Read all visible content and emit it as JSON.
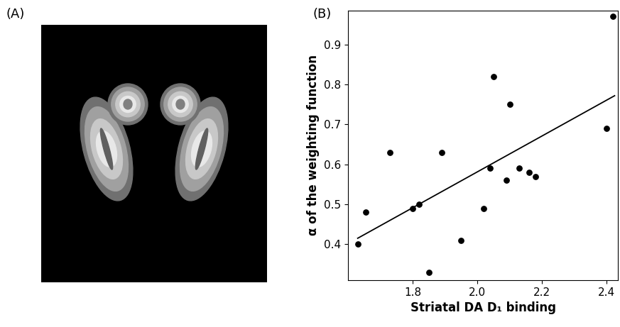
{
  "panel_labels": [
    "(A)",
    "(B)"
  ],
  "chart_data": {
    "type": "scatter",
    "x_label": "Striatal DA D₁ binding",
    "y_label": "α of the weighting function",
    "xlim": [
      1.6,
      2.435
    ],
    "ylim": [
      0.31,
      0.985
    ],
    "xticks": [
      1.8,
      {
        "value": 2.0,
        "label": "2.0"
      },
      2.2,
      2.4
    ],
    "yticks": [
      0.4,
      0.5,
      0.6,
      0.7,
      0.8,
      0.9
    ],
    "grid": false,
    "series": [
      {
        "type": "scatter",
        "color": "#000000",
        "marker": "o",
        "x": [
          1.63,
          1.655,
          1.73,
          1.8,
          1.82,
          1.85,
          1.89,
          1.95,
          2.02,
          2.04,
          2.05,
          2.09,
          2.1,
          2.13,
          2.16,
          2.18,
          2.4,
          2.42
        ],
        "values": [
          0.4,
          0.48,
          0.63,
          0.49,
          0.5,
          0.33,
          0.63,
          0.41,
          0.49,
          0.59,
          0.82,
          0.56,
          0.75,
          0.59,
          0.58,
          0.57,
          0.69,
          0.97
        ]
      },
      {
        "type": "line",
        "color": "#000000",
        "line_style": "solid",
        "x": [
          1.63,
          2.425
        ],
        "values": [
          0.415,
          0.772
        ]
      }
    ]
  }
}
